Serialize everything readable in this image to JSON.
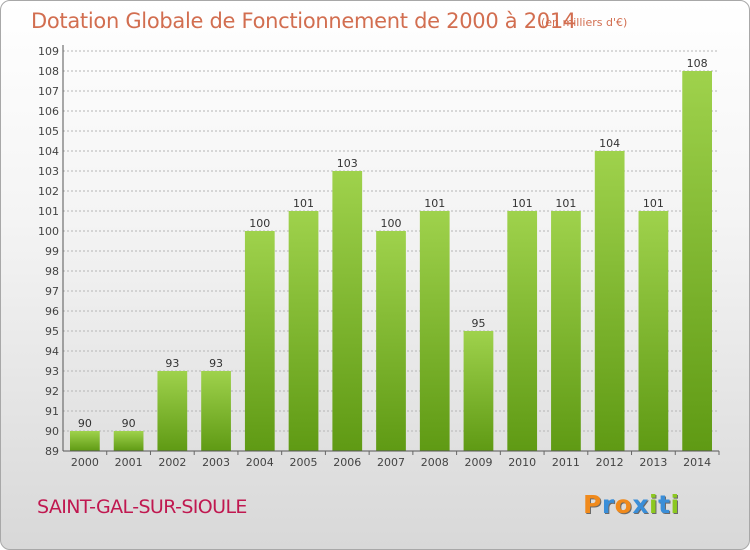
{
  "title": "Dotation Globale de Fonctionnement de 2000 à 2014",
  "unit_note": "(en milliers d'€)",
  "commune": "SAINT-GAL-SUR-SIOULE",
  "logo_text": "Proxiti",
  "colors": {
    "title": "#d26e50",
    "commune": "#c01850",
    "bar_light": "#9fd24c",
    "bar_dark": "#5f9a14",
    "grid": "#b5b5b5",
    "logo_letters": [
      "#f08a1c",
      "#3a8ed8",
      "#f08a1c",
      "#3a8ed8",
      "#8cc820",
      "#3a8ed8",
      "#8cc820"
    ]
  },
  "chart_data": {
    "type": "bar",
    "title": "Dotation Globale de Fonctionnement de 2000 à 2014",
    "xlabel": "",
    "ylabel": "",
    "categories": [
      "2000",
      "2001",
      "2002",
      "2003",
      "2004",
      "2005",
      "2006",
      "2007",
      "2008",
      "2009",
      "2010",
      "2011",
      "2012",
      "2013",
      "2014"
    ],
    "values": [
      90,
      90,
      93,
      93,
      100,
      101,
      103,
      100,
      101,
      95,
      101,
      101,
      104,
      101,
      108
    ],
    "ylim": [
      89,
      109
    ],
    "yticks": [
      89,
      90,
      91,
      92,
      93,
      94,
      95,
      96,
      97,
      98,
      99,
      100,
      101,
      102,
      103,
      104,
      105,
      106,
      107,
      108,
      109
    ],
    "grid": true,
    "legend": "none",
    "data_labels": true
  }
}
